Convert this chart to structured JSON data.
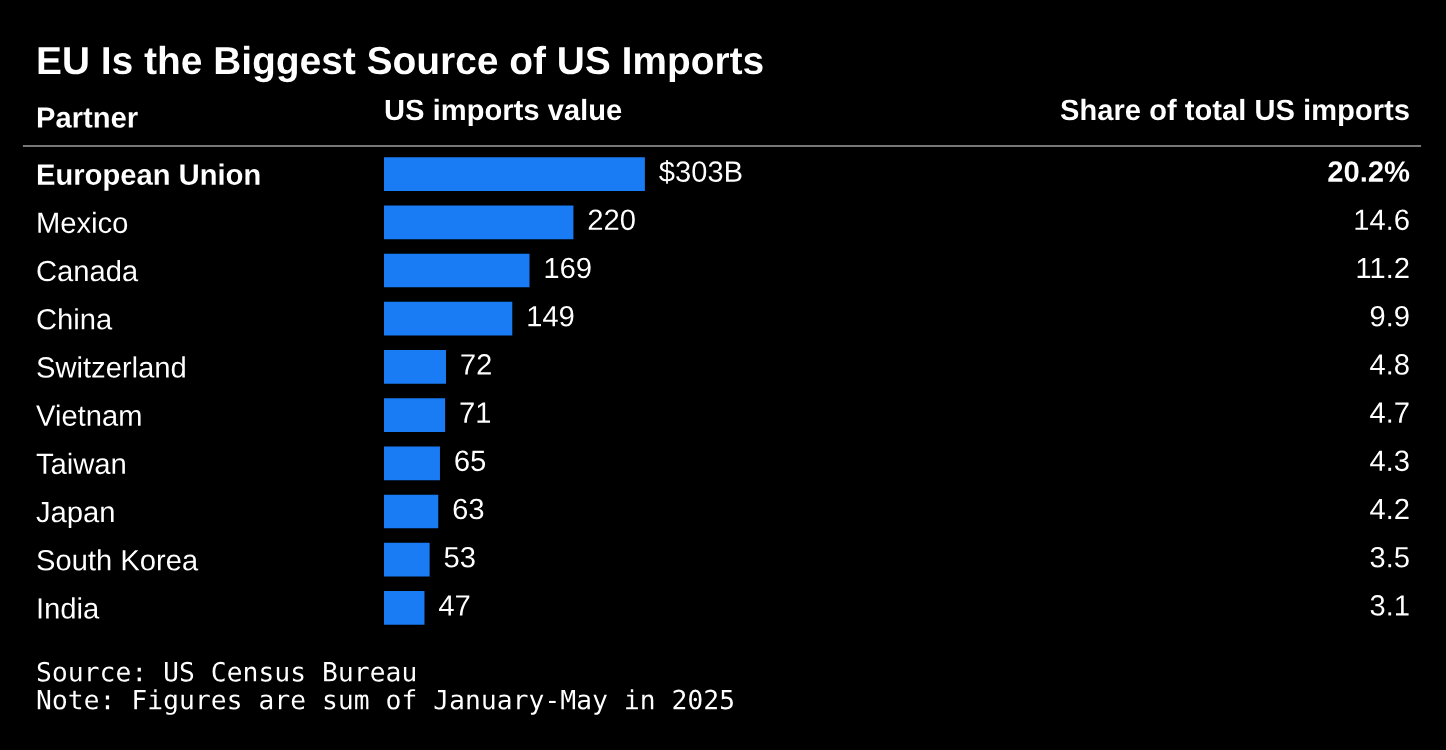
{
  "chart_data": [
    {
      "type": "bar",
      "orientation": "horizontal",
      "title": "EU Is the Biggest Source of US Imports",
      "ylabel": "Partner",
      "xlabel": "US imports value",
      "categories": [
        "European Union",
        "Mexico",
        "Canada",
        "China",
        "Switzerland",
        "Vietnam",
        "Taiwan",
        "Japan",
        "South Korea",
        "India"
      ],
      "values": [
        303,
        220,
        169,
        149,
        72,
        71,
        65,
        63,
        53,
        47
      ],
      "value_labels": [
        "$303B",
        "220",
        "169",
        "149",
        "72",
        "71",
        "65",
        "63",
        "53",
        "47"
      ],
      "color": "#1a7cf5",
      "tick_labels": "y",
      "annotations": [
        "Source: US Census Bureau",
        "Note: Figures are sum of January-May in 2025"
      ]
    },
    {
      "type": "other",
      "xlabel": "Share of total US imports",
      "values": [
        20.2,
        14.6,
        11.2,
        9.9,
        4.8,
        4.7,
        4.3,
        4.2,
        3.5,
        3.1
      ],
      "value_labels": [
        "20.2%",
        "14.6",
        "11.2",
        "9.9",
        "4.8",
        "4.7",
        "4.3",
        "4.2",
        "3.5",
        "3.1"
      ]
    }
  ]
}
